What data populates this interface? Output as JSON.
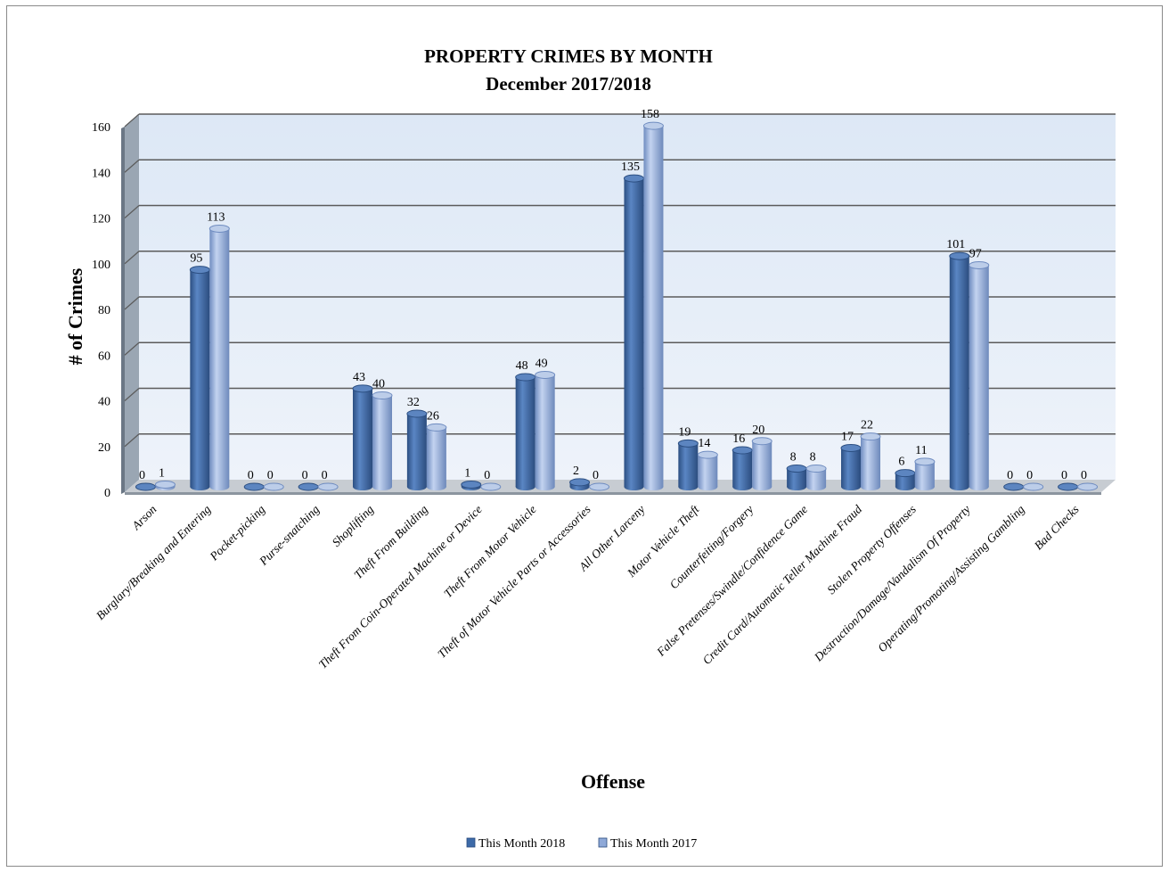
{
  "chart_data": {
    "type": "bar",
    "title": "PROPERTY CRIMES BY MONTH",
    "subtitle": "December 2017/2018",
    "xlabel": "Offense",
    "ylabel": "# of Crimes",
    "ylim": [
      0,
      160
    ],
    "yticks": [
      0,
      20,
      40,
      60,
      80,
      100,
      120,
      140,
      160
    ],
    "grid": true,
    "legend_position": "bottom",
    "categories": [
      "Arson",
      "Burglary/Breaking and Entering",
      "Pocket-picking",
      "Purse-snatching",
      "Shoplifting",
      "Theft From Building",
      "Theft From Coin-Operated Machine or Device",
      "Theft From Motor Vehicle",
      "Theft of Motor Vehicle Parts or Accessories",
      "All Other Larceny",
      "Motor Vehicle Theft",
      "Counterfeiting/Forgery",
      "False Pretenses/Swindle/Confidence Game",
      "Credit Card/Automatic Teller Machine Fraud",
      "Stolen Property Offenses",
      "Destruction/Damage/Vandalism Of Property",
      "Operating/Promoting/Assisting Gambling",
      "Bad Checks"
    ],
    "series": [
      {
        "name": "This Month 2018",
        "color": "#3d6aa8",
        "values": [
          0,
          95,
          0,
          0,
          43,
          32,
          1,
          48,
          2,
          135,
          19,
          16,
          8,
          17,
          6,
          101,
          0,
          0
        ]
      },
      {
        "name": "This Month 2017",
        "color": "#8fa9d8",
        "values": [
          1,
          113,
          0,
          0,
          40,
          26,
          0,
          49,
          0,
          158,
          14,
          20,
          8,
          22,
          11,
          97,
          0,
          0
        ]
      }
    ]
  }
}
